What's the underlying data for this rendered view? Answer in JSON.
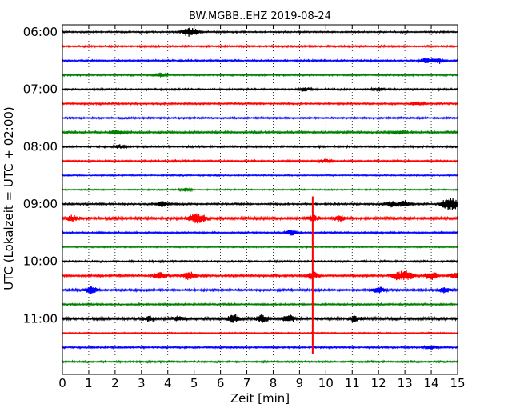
{
  "chart_data": {
    "type": "line",
    "title": "BW.MGBB..EHZ 2019-08-24",
    "xlabel": "Zeit  [min]",
    "ylabel": "UTC (Lokalzeit = UTC + 02:00)",
    "xlim": [
      0,
      15
    ],
    "x_ticks": [
      "0",
      "1",
      "2",
      "3",
      "4",
      "5",
      "6",
      "7",
      "8",
      "9",
      "10",
      "11",
      "12",
      "13",
      "14",
      "15"
    ],
    "y_tick_labels": [
      "06:00",
      "07:00",
      "08:00",
      "09:00",
      "10:00",
      "11:00"
    ],
    "grid_x": true,
    "grid_y": false,
    "trace_interval_min": 15,
    "trace_colors": [
      "#000000",
      "#ff0000",
      "#0000ff",
      "#008000"
    ],
    "series": [
      {
        "start": "06:00",
        "color": "#000000",
        "noise": 0.35,
        "bursts": [
          [
            4.75,
            2.2
          ],
          [
            5.0,
            1.5
          ]
        ]
      },
      {
        "start": "06:15",
        "color": "#ff0000",
        "noise": 0.4,
        "bursts": []
      },
      {
        "start": "06:30",
        "color": "#0000ff",
        "noise": 0.4,
        "bursts": [
          [
            13.8,
            1.6
          ],
          [
            14.3,
            1.4
          ]
        ]
      },
      {
        "start": "06:45",
        "color": "#008000",
        "noise": 0.4,
        "bursts": [
          [
            3.7,
            1.0
          ]
        ]
      },
      {
        "start": "07:00",
        "color": "#000000",
        "noise": 0.4,
        "bursts": [
          [
            9.2,
            1.0
          ],
          [
            12.0,
            0.9
          ]
        ]
      },
      {
        "start": "07:15",
        "color": "#ff0000",
        "noise": 0.4,
        "bursts": [
          [
            13.5,
            1.1
          ]
        ]
      },
      {
        "start": "07:30",
        "color": "#0000ff",
        "noise": 0.4,
        "bursts": []
      },
      {
        "start": "07:45",
        "color": "#008000",
        "noise": 0.5,
        "bursts": [
          [
            2.1,
            1.2
          ],
          [
            12.8,
            1.0
          ]
        ]
      },
      {
        "start": "08:00",
        "color": "#000000",
        "noise": 0.4,
        "bursts": [
          [
            2.2,
            1.0
          ]
        ]
      },
      {
        "start": "08:15",
        "color": "#ff0000",
        "noise": 0.4,
        "bursts": [
          [
            10.0,
            1.1
          ]
        ]
      },
      {
        "start": "08:30",
        "color": "#0000ff",
        "noise": 0.3,
        "bursts": []
      },
      {
        "start": "08:45",
        "color": "#008000",
        "noise": 0.3,
        "bursts": [
          [
            4.7,
            1.0
          ]
        ]
      },
      {
        "start": "09:00",
        "color": "#000000",
        "noise": 0.4,
        "bursts": [
          [
            3.8,
            1.5
          ],
          [
            12.5,
            1.8
          ],
          [
            13.0,
            2.0
          ],
          [
            14.6,
            3.4
          ],
          [
            14.9,
            2.4
          ]
        ]
      },
      {
        "start": "09:15",
        "color": "#ff0000",
        "noise": 0.6,
        "bursts": [
          [
            0.4,
            1.6
          ],
          [
            5.0,
            2.5
          ],
          [
            5.3,
            2.0
          ],
          [
            9.5,
            2.0
          ],
          [
            10.5,
            1.6
          ]
        ]
      },
      {
        "start": "09:30",
        "color": "#0000ff",
        "noise": 0.4,
        "bursts": [
          [
            8.7,
            1.6
          ]
        ]
      },
      {
        "start": "09:45",
        "color": "#008000",
        "noise": 0.3,
        "bursts": []
      },
      {
        "start": "10:00",
        "color": "#000000",
        "noise": 0.4,
        "bursts": []
      },
      {
        "start": "10:15",
        "color": "#ff0000",
        "noise": 0.5,
        "bursts": [
          [
            3.7,
            1.8
          ],
          [
            4.8,
            2.4
          ],
          [
            9.5,
            2.2
          ],
          [
            12.7,
            2.3
          ],
          [
            13.1,
            2.8
          ],
          [
            14.0,
            2.4
          ],
          [
            14.9,
            1.8
          ]
        ]
      },
      {
        "start": "10:30",
        "color": "#0000ff",
        "noise": 0.5,
        "bursts": [
          [
            1.1,
            2.1
          ],
          [
            12.0,
            1.9
          ],
          [
            14.5,
            1.4
          ]
        ]
      },
      {
        "start": "10:45",
        "color": "#008000",
        "noise": 0.4,
        "bursts": []
      },
      {
        "start": "11:00",
        "color": "#000000",
        "noise": 0.6,
        "bursts": [
          [
            3.3,
            1.5
          ],
          [
            4.4,
            1.4
          ],
          [
            6.5,
            2.3
          ],
          [
            7.6,
            2.2
          ],
          [
            8.6,
            2.1
          ],
          [
            11.1,
            1.6
          ]
        ]
      },
      {
        "start": "11:15",
        "color": "#ff0000",
        "noise": 0.3,
        "bursts": []
      },
      {
        "start": "11:30",
        "color": "#0000ff",
        "noise": 0.4,
        "bursts": [
          [
            14.0,
            1.0
          ]
        ]
      },
      {
        "start": "11:45",
        "color": "#008000",
        "noise": 0.4,
        "bursts": []
      }
    ],
    "marker": {
      "x": 9.5,
      "y_from": "08:52",
      "y_to": "11:37",
      "color": "#ff0000"
    }
  }
}
